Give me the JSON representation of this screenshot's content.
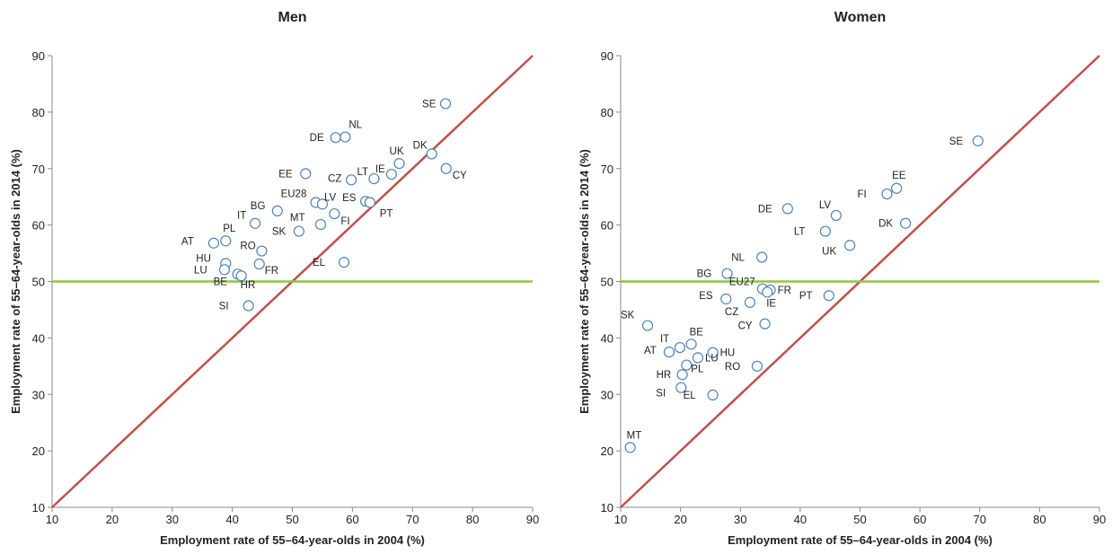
{
  "chart_data": [
    {
      "type": "scatter",
      "title": "Men",
      "xlabel": "Employment rate of 55–64-year-olds in 2004 (%)",
      "ylabel": "Employment rate of 55–64-year-olds in 2014 (%)",
      "xlim": [
        10,
        90
      ],
      "ylim": [
        10,
        90
      ],
      "xticks": [
        10,
        20,
        30,
        40,
        50,
        60,
        70,
        80,
        90
      ],
      "yticks": [
        10,
        20,
        30,
        40,
        50,
        60,
        70,
        80,
        90
      ],
      "grid": false,
      "reference_diagonal_color": "#c0504d",
      "reference_hline_y": 50,
      "reference_hline_color": "#8dc63f",
      "marker_color": "#4f81bd",
      "points": [
        {
          "label": "SE",
          "x": 75.5,
          "y": 81.5
        },
        {
          "label": "DE",
          "x": 57.2,
          "y": 75.5
        },
        {
          "label": "NL",
          "x": 58.8,
          "y": 75.6
        },
        {
          "label": "DK",
          "x": 73.2,
          "y": 72.6
        },
        {
          "label": "UK",
          "x": 67.8,
          "y": 70.9
        },
        {
          "label": "CY",
          "x": 75.6,
          "y": 70.0
        },
        {
          "label": "EE",
          "x": 52.2,
          "y": 69.1
        },
        {
          "label": "IE",
          "x": 66.5,
          "y": 69.0
        },
        {
          "label": "LT",
          "x": 63.6,
          "y": 68.2
        },
        {
          "label": "CZ",
          "x": 59.8,
          "y": 68.0
        },
        {
          "label": "EU28",
          "x": 53.9,
          "y": 64.0
        },
        {
          "label": "LV",
          "x": 55.0,
          "y": 63.7
        },
        {
          "label": "ES",
          "x": 62.2,
          "y": 64.2
        },
        {
          "label": "PT",
          "x": 62.9,
          "y": 64.0
        },
        {
          "label": "BG",
          "x": 47.5,
          "y": 62.5
        },
        {
          "label": "FI",
          "x": 57.0,
          "y": 62.0
        },
        {
          "label": "IT",
          "x": 43.8,
          "y": 60.3
        },
        {
          "label": "MT",
          "x": 54.7,
          "y": 60.1
        },
        {
          "label": "SK",
          "x": 51.1,
          "y": 58.9
        },
        {
          "label": "PL",
          "x": 38.9,
          "y": 57.2
        },
        {
          "label": "AT",
          "x": 36.9,
          "y": 56.8
        },
        {
          "label": "RO",
          "x": 44.9,
          "y": 55.4
        },
        {
          "label": "EL",
          "x": 58.6,
          "y": 53.4
        },
        {
          "label": "HU",
          "x": 38.9,
          "y": 53.2
        },
        {
          "label": "FR",
          "x": 44.5,
          "y": 53.1
        },
        {
          "label": "LU",
          "x": 38.7,
          "y": 52.1
        },
        {
          "label": "BE",
          "x": 40.9,
          "y": 51.3
        },
        {
          "label": "HR",
          "x": 41.5,
          "y": 51.0
        },
        {
          "label": "SI",
          "x": 42.7,
          "y": 45.7
        }
      ]
    },
    {
      "type": "scatter",
      "title": "Women",
      "xlabel": "Employment rate of 55–64-year-olds in 2004 (%)",
      "ylabel": "Employment rate of 55–64-year-olds in 2014 (%)",
      "xlim": [
        10,
        90
      ],
      "ylim": [
        10,
        90
      ],
      "xticks": [
        10,
        20,
        30,
        40,
        50,
        60,
        70,
        80,
        90
      ],
      "yticks": [
        10,
        20,
        30,
        40,
        50,
        60,
        70,
        80,
        90
      ],
      "grid": false,
      "reference_diagonal_color": "#c0504d",
      "reference_hline_y": 50,
      "reference_hline_color": "#8dc63f",
      "marker_color": "#4f81bd",
      "points": [
        {
          "label": "SE",
          "x": 69.7,
          "y": 74.9
        },
        {
          "label": "EE",
          "x": 56.1,
          "y": 66.5
        },
        {
          "label": "FI",
          "x": 54.5,
          "y": 65.5
        },
        {
          "label": "DE",
          "x": 37.9,
          "y": 62.9
        },
        {
          "label": "LV",
          "x": 46.0,
          "y": 61.7
        },
        {
          "label": "DK",
          "x": 57.6,
          "y": 60.3
        },
        {
          "label": "LT",
          "x": 44.2,
          "y": 58.9
        },
        {
          "label": "UK",
          "x": 48.3,
          "y": 56.4
        },
        {
          "label": "NL",
          "x": 33.6,
          "y": 54.3
        },
        {
          "label": "BG",
          "x": 27.8,
          "y": 51.4
        },
        {
          "label": "EU27",
          "x": 33.7,
          "y": 48.7
        },
        {
          "label": "FR",
          "x": 35.0,
          "y": 48.5
        },
        {
          "label": "IE",
          "x": 34.5,
          "y": 48.1
        },
        {
          "label": "PT",
          "x": 44.8,
          "y": 47.5
        },
        {
          "label": "ES",
          "x": 27.6,
          "y": 46.9
        },
        {
          "label": "CZ",
          "x": 31.6,
          "y": 46.3
        },
        {
          "label": "CY",
          "x": 34.1,
          "y": 42.5
        },
        {
          "label": "SK",
          "x": 14.5,
          "y": 42.2
        },
        {
          "label": "BE",
          "x": 21.8,
          "y": 38.9
        },
        {
          "label": "IT",
          "x": 19.9,
          "y": 38.3
        },
        {
          "label": "AT",
          "x": 18.1,
          "y": 37.5
        },
        {
          "label": "HU",
          "x": 25.4,
          "y": 37.4
        },
        {
          "label": "LU",
          "x": 22.9,
          "y": 36.5
        },
        {
          "label": "PL",
          "x": 21.0,
          "y": 35.2
        },
        {
          "label": "RO",
          "x": 32.8,
          "y": 35.0
        },
        {
          "label": "HR",
          "x": 20.3,
          "y": 33.5
        },
        {
          "label": "SI",
          "x": 20.1,
          "y": 31.2
        },
        {
          "label": "EL",
          "x": 25.4,
          "y": 29.9
        },
        {
          "label": "MT",
          "x": 11.6,
          "y": 20.6
        }
      ]
    }
  ]
}
